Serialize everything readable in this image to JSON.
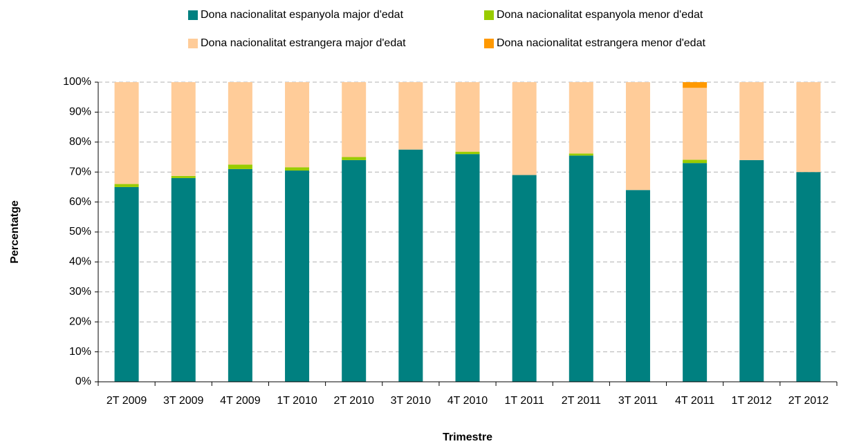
{
  "chart_data": {
    "type": "stacked_bar",
    "xlabel": "Trimestre",
    "ylabel": "Percentatge",
    "categories": [
      "2T 2009",
      "3T 2009",
      "4T 2009",
      "1T 2010",
      "2T 2010",
      "3T 2010",
      "4T 2010",
      "1T 2011",
      "2T 2011",
      "3T 2011",
      "4T 2011",
      "1T 2012",
      "2T 2012"
    ],
    "series": [
      {
        "name": "Dona nacionalitat espanyola major d'edat",
        "color": "#008080",
        "values": [
          65,
          68,
          71,
          70.5,
          74,
          77.5,
          76,
          69,
          75.5,
          64,
          73,
          74,
          70
        ]
      },
      {
        "name": "Dona nacionalitat espanyola menor d'edat",
        "color": "#99cc00",
        "values": [
          1,
          0.7,
          1.5,
          1.1,
          1,
          0,
          0.8,
          0,
          0.7,
          0,
          1.1,
          0,
          0
        ]
      },
      {
        "name": "Dona nacionalitat estrangera major d'edat",
        "color": "#ffcc99",
        "values": [
          34,
          31.3,
          27.5,
          28.4,
          25,
          22.5,
          23.2,
          31,
          23.8,
          36,
          24,
          26,
          30
        ]
      },
      {
        "name": "Dona nacionalitat estrangera menor d'edat",
        "color": "#ff9900",
        "values": [
          0,
          0,
          0,
          0,
          0,
          0,
          0,
          0,
          0,
          0,
          1.9,
          0,
          0
        ]
      }
    ],
    "ylim": [
      0,
      100
    ],
    "yticks": [
      {
        "value": 0,
        "label": "0%"
      },
      {
        "value": 10,
        "label": "10%"
      },
      {
        "value": 20,
        "label": "20%"
      },
      {
        "value": 30,
        "label": "30%"
      },
      {
        "value": 40,
        "label": "40%"
      },
      {
        "value": 50,
        "label": "50%"
      },
      {
        "value": 60,
        "label": "60%"
      },
      {
        "value": 70,
        "label": "70%"
      },
      {
        "value": 80,
        "label": "80%"
      },
      {
        "value": 90,
        "label": "90%"
      },
      {
        "value": 100,
        "label": "100%"
      }
    ],
    "grid": true,
    "legend": "top"
  }
}
